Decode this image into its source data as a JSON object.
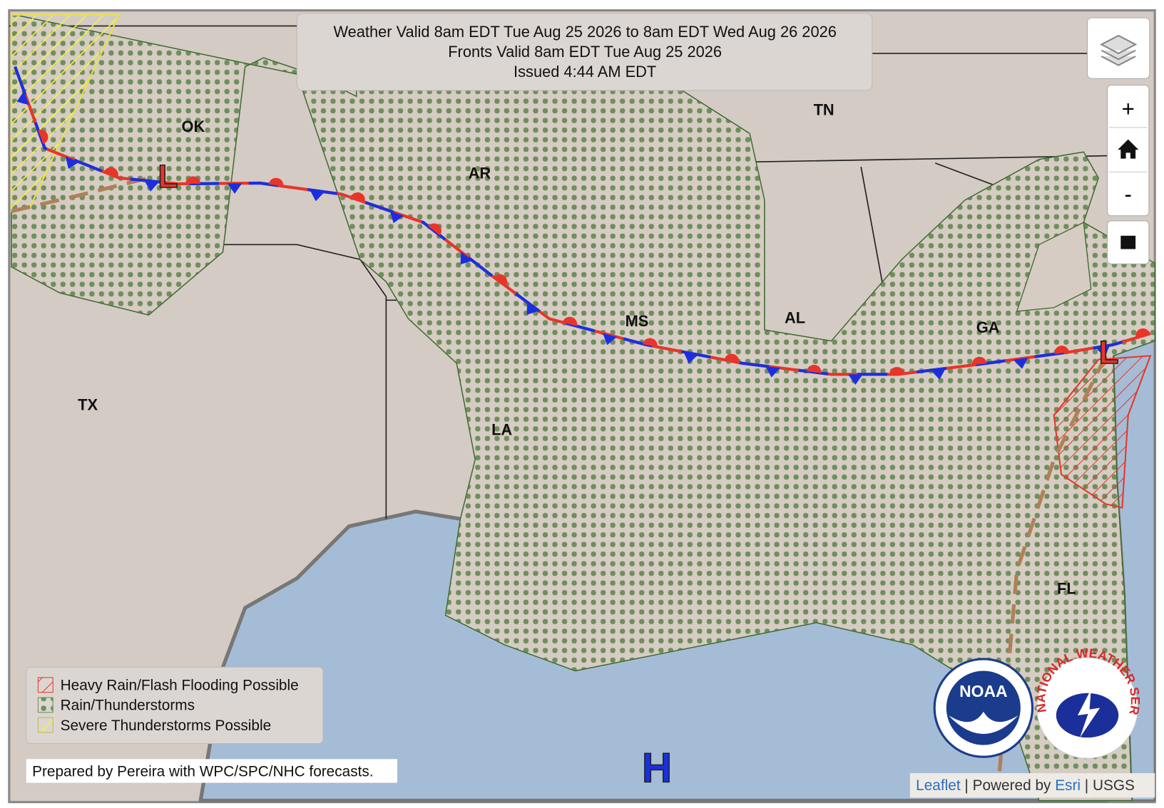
{
  "header": {
    "lines": [
      "Weather Valid 8am EDT Tue Aug 25 2026 to 8am EDT Wed Aug 26 2026",
      "Fronts Valid 8am EDT Tue Aug 25 2026",
      "Issued 4:44 AM EDT"
    ]
  },
  "states": [
    "OK",
    "AR",
    "TN",
    "TX",
    "LA",
    "MS",
    "AL",
    "GA",
    "FL"
  ],
  "pressure_centers": [
    "L",
    "L",
    "H"
  ],
  "legend": {
    "items": [
      "Heavy Rain/Flash Flooding Possible",
      "Rain/Thunderstorms",
      "Severe Thunderstorms Possible"
    ]
  },
  "credit": "Prepared by Pereira with WPC/SPC/NHC forecasts.",
  "attribution": [
    "Leaflet",
    "| Powered by",
    "Esri",
    "| USGS"
  ],
  "controls": {
    "zoom_in": "+",
    "zoom_out": "-"
  },
  "logos": {
    "noaa": "NOAA",
    "nws": "NATIONAL WEATHER SERVICE"
  }
}
